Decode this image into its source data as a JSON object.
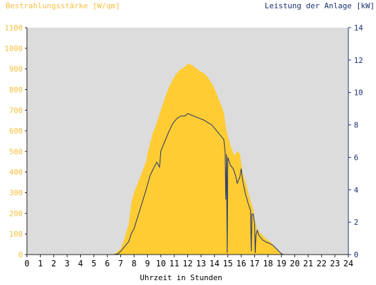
{
  "chart_data": {
    "type": "area",
    "left_axis_label": "Bestrahlungsstärke [W/qm]",
    "right_axis_label": "Leistung der Anlage [kW]",
    "xlabel": "Uhrzeit in Stunden",
    "xlim": [
      0,
      24
    ],
    "ylim_left": [
      0,
      1100
    ],
    "ylim_right": [
      0,
      14
    ],
    "x_ticks": [
      "0",
      "1",
      "2",
      "3",
      "4",
      "5",
      "6",
      "7",
      "8",
      "9",
      "10",
      "11",
      "12",
      "13",
      "14",
      "15",
      "16",
      "17",
      "18",
      "19",
      "20",
      "21",
      "22",
      "23",
      "24"
    ],
    "y_left_ticks": [
      "0",
      "100",
      "200",
      "300",
      "400",
      "500",
      "600",
      "700",
      "800",
      "900",
      "1000",
      "1100"
    ],
    "y_right_ticks": [
      "0",
      "2",
      "4",
      "6",
      "8",
      "10",
      "12",
      "14"
    ],
    "grid": false,
    "colors": {
      "plot_background": "#dcdcdc",
      "irradiance_fill": "#ffcc33",
      "left_axis_text": "#f5c040",
      "right_axis_text": "#1a3070",
      "power_line": "#1a3070"
    },
    "series": [
      {
        "axis": "left",
        "style": "area",
        "points": [
          [
            0,
            0
          ],
          [
            6.2,
            0
          ],
          [
            6.6,
            5
          ],
          [
            7.0,
            30
          ],
          [
            7.3,
            80
          ],
          [
            7.6,
            150
          ],
          [
            7.8,
            250
          ],
          [
            8.0,
            300
          ],
          [
            8.3,
            350
          ],
          [
            8.6,
            400
          ],
          [
            8.9,
            450
          ],
          [
            9.0,
            490
          ],
          [
            9.2,
            540
          ],
          [
            9.4,
            590
          ],
          [
            9.6,
            620
          ],
          [
            9.8,
            660
          ],
          [
            10.0,
            700
          ],
          [
            10.3,
            760
          ],
          [
            10.6,
            810
          ],
          [
            10.9,
            850
          ],
          [
            11.2,
            880
          ],
          [
            11.5,
            900
          ],
          [
            11.8,
            910
          ],
          [
            12.0,
            925
          ],
          [
            12.3,
            920
          ],
          [
            12.6,
            905
          ],
          [
            12.9,
            890
          ],
          [
            13.2,
            880
          ],
          [
            13.5,
            860
          ],
          [
            13.8,
            830
          ],
          [
            14.1,
            790
          ],
          [
            14.4,
            740
          ],
          [
            14.7,
            690
          ],
          [
            14.9,
            600
          ],
          [
            15.1,
            550
          ],
          [
            15.3,
            510
          ],
          [
            15.5,
            480
          ],
          [
            15.7,
            500
          ],
          [
            15.9,
            490
          ],
          [
            16.1,
            400
          ],
          [
            16.3,
            360
          ],
          [
            16.5,
            310
          ],
          [
            16.7,
            260
          ],
          [
            16.9,
            220
          ],
          [
            17.0,
            170
          ],
          [
            17.2,
            120
          ],
          [
            17.5,
            100
          ],
          [
            17.8,
            80
          ],
          [
            18.0,
            70
          ],
          [
            18.3,
            55
          ],
          [
            18.6,
            30
          ],
          [
            18.9,
            10
          ],
          [
            19.1,
            0
          ],
          [
            24,
            0
          ]
        ]
      },
      {
        "axis": "right",
        "style": "line",
        "points": [
          [
            0,
            0
          ],
          [
            6.5,
            0
          ],
          [
            6.8,
            0.05
          ],
          [
            7.0,
            0.2
          ],
          [
            7.3,
            0.5
          ],
          [
            7.6,
            0.8
          ],
          [
            7.8,
            1.3
          ],
          [
            8.0,
            1.6
          ],
          [
            8.3,
            2.4
          ],
          [
            8.6,
            3.2
          ],
          [
            8.9,
            4.0
          ],
          [
            9.2,
            4.9
          ],
          [
            9.5,
            5.4
          ],
          [
            9.7,
            5.7
          ],
          [
            9.9,
            5.4
          ],
          [
            10.0,
            6.4
          ],
          [
            10.3,
            7.0
          ],
          [
            10.6,
            7.6
          ],
          [
            10.9,
            8.1
          ],
          [
            11.2,
            8.4
          ],
          [
            11.5,
            8.55
          ],
          [
            11.8,
            8.55
          ],
          [
            12.0,
            8.7
          ],
          [
            12.3,
            8.6
          ],
          [
            12.6,
            8.5
          ],
          [
            12.9,
            8.4
          ],
          [
            13.2,
            8.3
          ],
          [
            13.5,
            8.15
          ],
          [
            13.8,
            8.0
          ],
          [
            14.1,
            7.7
          ],
          [
            14.4,
            7.4
          ],
          [
            14.7,
            7.1
          ],
          [
            14.8,
            6.3
          ],
          [
            14.85,
            3.4
          ],
          [
            14.9,
            6.2
          ],
          [
            14.95,
            0.1
          ],
          [
            15.0,
            6.0
          ],
          [
            15.2,
            5.5
          ],
          [
            15.4,
            5.3
          ],
          [
            15.6,
            4.8
          ],
          [
            15.7,
            4.4
          ],
          [
            15.9,
            4.8
          ],
          [
            16.0,
            5.3
          ],
          [
            16.1,
            4.6
          ],
          [
            16.3,
            3.8
          ],
          [
            16.5,
            3.2
          ],
          [
            16.7,
            2.7
          ],
          [
            16.75,
            0.2
          ],
          [
            16.8,
            2.5
          ],
          [
            16.9,
            2.5
          ],
          [
            17.0,
            1.9
          ],
          [
            17.05,
            0.1
          ],
          [
            17.1,
            1.2
          ],
          [
            17.2,
            1.5
          ],
          [
            17.3,
            1.2
          ],
          [
            17.6,
            0.9
          ],
          [
            17.9,
            0.75
          ],
          [
            18.1,
            0.7
          ],
          [
            18.4,
            0.55
          ],
          [
            18.7,
            0.3
          ],
          [
            19.0,
            0.05
          ],
          [
            19.2,
            0
          ],
          [
            24,
            0
          ]
        ]
      }
    ]
  }
}
